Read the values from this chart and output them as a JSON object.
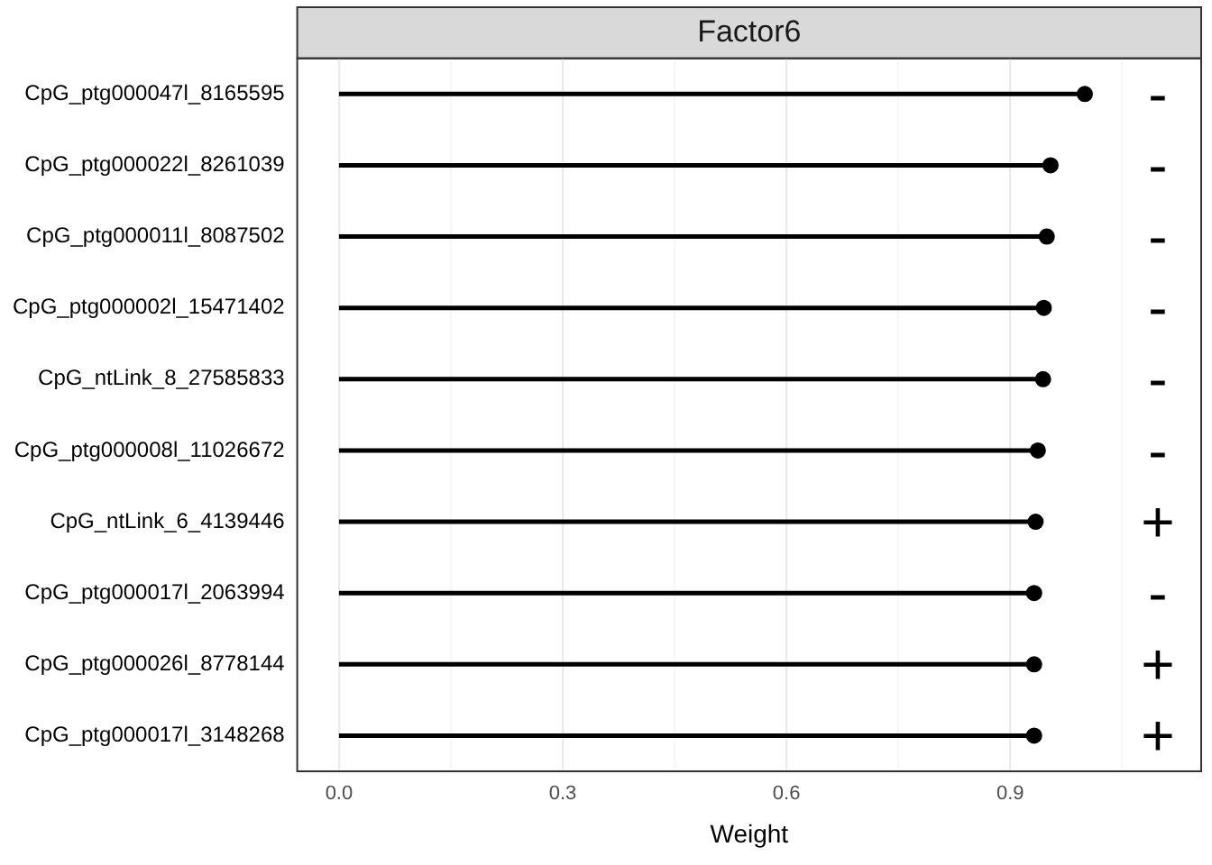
{
  "chart_data": {
    "type": "lollipop",
    "orientation": "horizontal",
    "title": "Factor6",
    "xlabel": "Weight",
    "categories": [
      "CpG_ptg000047l_8165595",
      "CpG_ptg000022l_8261039",
      "CpG_ptg000011l_8087502",
      "CpG_ptg000002l_15471402",
      "CpG_ntLink_8_27585833",
      "CpG_ptg000008l_11026672",
      "CpG_ntLink_6_4139446",
      "CpG_ptg000017l_2063994",
      "CpG_ptg000026l_8778144",
      "CpG_ptg000017l_3148268"
    ],
    "values": [
      1.0,
      0.954,
      0.949,
      0.945,
      0.944,
      0.937,
      0.934,
      0.932,
      0.932,
      0.932
    ],
    "color": "#000000",
    "marker": "circle",
    "grid": "x",
    "xlim": [
      -0.056,
      1.156
    ],
    "xticks": [
      {
        "value": 0,
        "label": "0.0"
      },
      {
        "value": 0.15,
        "label": null
      },
      0.3,
      {
        "value": 0.45,
        "label": null
      },
      0.6,
      {
        "value": 0.75,
        "label": null
      },
      0.9,
      {
        "value": 1.05,
        "label": null
      }
    ],
    "annotations": [
      "-",
      "-",
      "-",
      "-",
      "-",
      "-",
      "+",
      "-",
      "+",
      "+"
    ]
  }
}
